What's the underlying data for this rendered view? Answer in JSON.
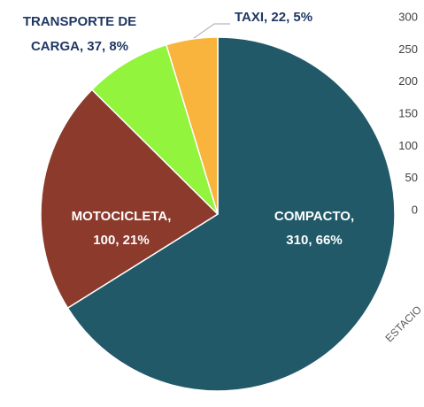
{
  "chart_data": [
    {
      "type": "pie",
      "categories": [
        "COMPACTO",
        "MOTOCICLETA",
        "TRANSPORTE DE CARGA",
        "TAXI"
      ],
      "values": [
        310,
        100,
        37,
        22
      ],
      "value_labels": [
        [
          "COMPACTO,",
          "310, 66%"
        ],
        [
          "MOTOCICLETA,",
          "100, 21%"
        ],
        [
          "TRANSPORTE  DE",
          "CARGA, 37, 8%"
        ],
        [
          "TAXI,  22, 5%"
        ]
      ],
      "colors": [
        "#215968",
        "#8b3a2b",
        "#92f43c",
        "#f8b43c"
      ]
    },
    {
      "type": "bar",
      "categories": [
        "ESTACIO"
      ],
      "ylim": [
        0,
        300
      ],
      "yticks": [
        0,
        50,
        100,
        150,
        200,
        250,
        300
      ]
    }
  ]
}
